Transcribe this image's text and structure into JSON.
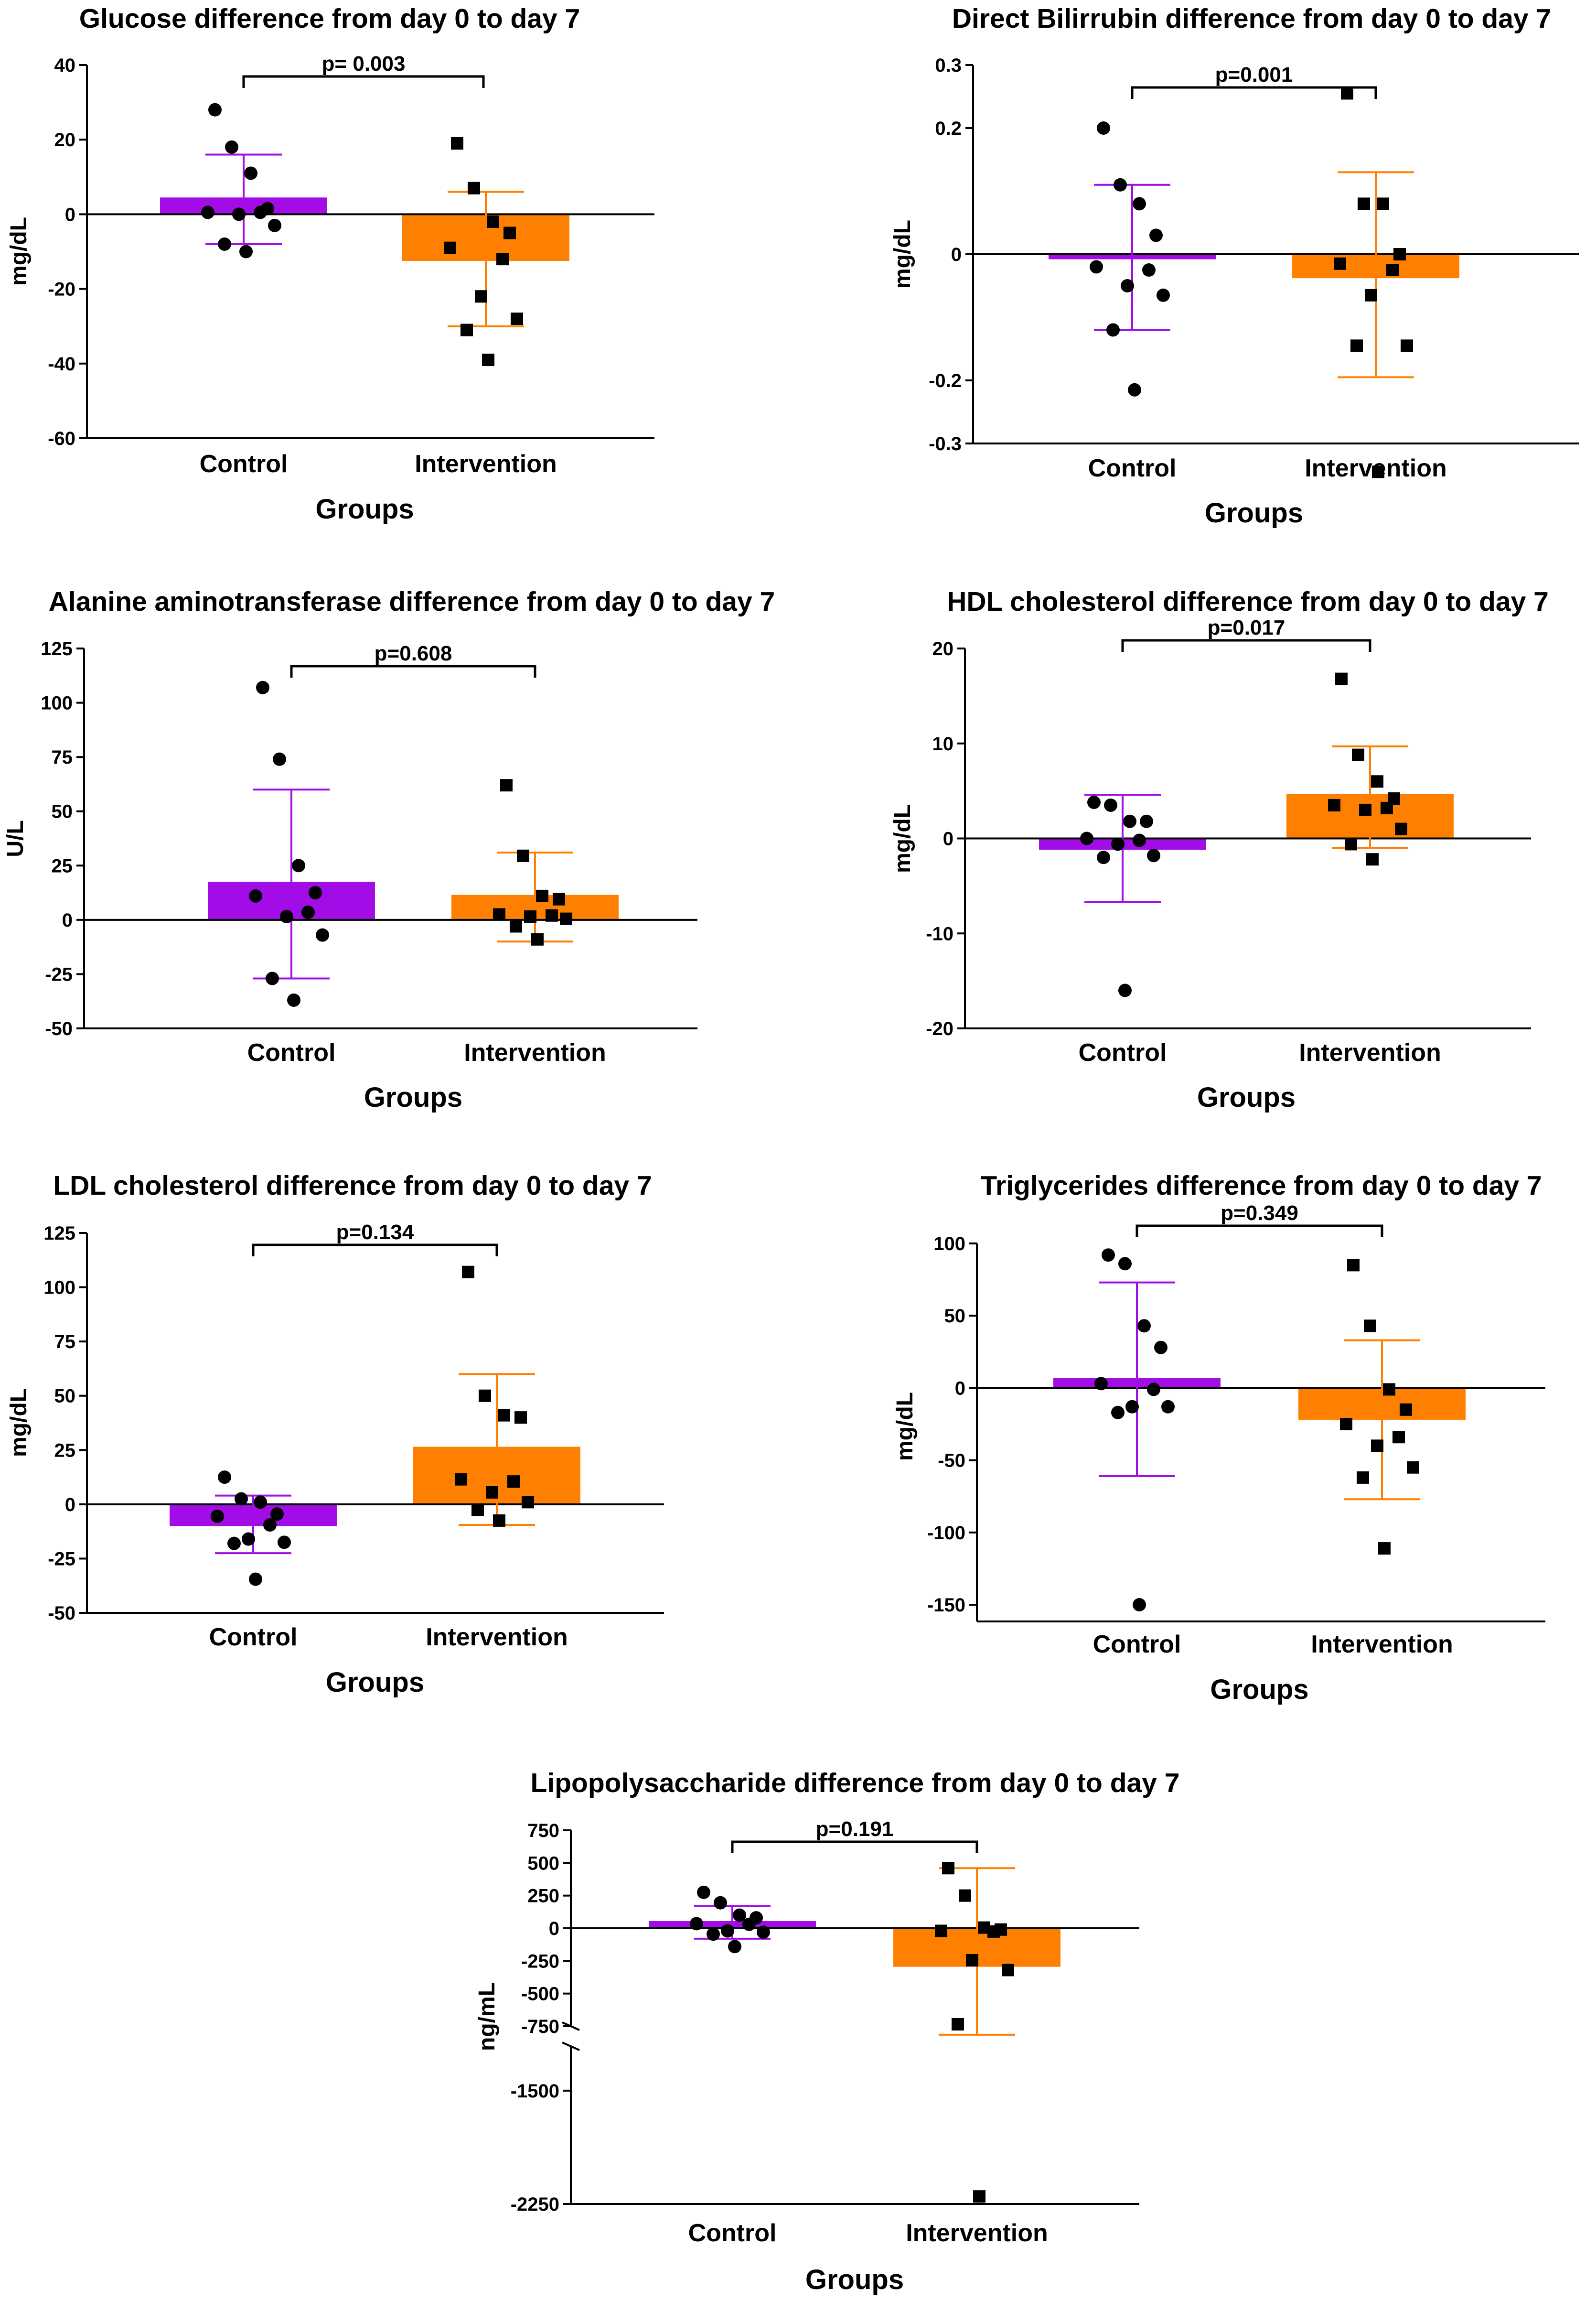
{
  "colors": {
    "control": "#a20de7",
    "intervention": "#ff8000",
    "ink": "#000000"
  },
  "chart_data": [
    {
      "type": "bar",
      "title": "Glucose difference from day 0 to day 7",
      "xlabel": "Groups",
      "ylabel": "mg/dL",
      "categories": [
        "Control",
        "Intervention"
      ],
      "ylim": [
        -60,
        40
      ],
      "yticks": [
        40,
        20,
        0,
        -20,
        -40,
        -60
      ],
      "ytick_labels": [
        "40",
        "20",
        "0",
        "-20",
        "-40",
        "-60"
      ],
      "means": [
        4.5,
        -12.5
      ],
      "error": [
        [
          -8,
          16
        ],
        [
          -30,
          6
        ]
      ],
      "points": [
        [
          28,
          18,
          11,
          1.5,
          0.5,
          0.5,
          0,
          -3,
          -8,
          -10
        ],
        [
          19,
          7,
          -2,
          -5,
          -9,
          -12,
          -22,
          -28,
          -31,
          -39
        ]
      ],
      "pvalue": "p= 0.003"
    },
    {
      "type": "bar",
      "title": "Direct Bilirrubin difference from day 0 to day 7",
      "xlabel": "Groups",
      "ylabel": "mg/dL",
      "categories": [
        "Control",
        "Intervention"
      ],
      "ylim": [
        -0.3,
        0.3
      ],
      "yticks": [
        0.3,
        0.2,
        0,
        -0.2,
        -0.3
      ],
      "ytick_labels": [
        "0.3",
        "0.2",
        "0",
        "-0.2",
        "-0.3"
      ],
      "means": [
        -0.008,
        -0.038
      ],
      "error": [
        [
          -0.12,
          0.11
        ],
        [
          -0.195,
          0.13
        ]
      ],
      "points": [
        [
          0.2,
          0.11,
          0.08,
          0.03,
          -0.02,
          -0.025,
          -0.05,
          -0.065,
          -0.12,
          -0.215
        ],
        [
          0.255,
          0.08,
          0.08,
          0.0,
          -0.015,
          -0.025,
          -0.065,
          -0.145,
          -0.145,
          -0.345
        ]
      ],
      "pvalue": "p=0.001"
    },
    {
      "type": "bar",
      "title": "Alanine aminotransferase difference from day 0 to day 7",
      "xlabel": "Groups",
      "ylabel": "U/L",
      "categories": [
        "Control",
        "Intervention"
      ],
      "ylim": [
        -50,
        125
      ],
      "yticks": [
        125,
        100,
        75,
        50,
        25,
        0,
        -25,
        -50
      ],
      "ytick_labels": [
        "125",
        "100",
        "75",
        "50",
        "25",
        "0",
        "-25",
        "-50"
      ],
      "means": [
        17.5,
        11.5
      ],
      "error": [
        [
          -27,
          60
        ],
        [
          -10,
          31
        ]
      ],
      "points": [
        [
          107,
          74,
          25,
          12.5,
          11,
          3.5,
          1.5,
          -7,
          -27,
          -37
        ],
        [
          62,
          29.5,
          11,
          9.5,
          2.5,
          2,
          1.5,
          0.5,
          -3,
          -9
        ]
      ],
      "pvalue": "p=0.608"
    },
    {
      "type": "bar",
      "title": "HDL cholesterol difference from day 0 to day 7",
      "xlabel": "Groups",
      "ylabel": "mg/dL",
      "categories": [
        "Control",
        "Intervention"
      ],
      "ylim": [
        -20,
        20
      ],
      "yticks": [
        20,
        10,
        0,
        -10,
        -20
      ],
      "ytick_labels": [
        "20",
        "10",
        "0",
        "-10",
        "-20"
      ],
      "means": [
        -1.2,
        4.7
      ],
      "error": [
        [
          -6.7,
          4.6
        ],
        [
          -1,
          9.7
        ]
      ],
      "points": [
        [
          3.8,
          3.5,
          1.8,
          1.8,
          0,
          -0.2,
          -0.6,
          -1.8,
          -2,
          -16
        ],
        [
          16.8,
          8.8,
          6,
          4.2,
          3.5,
          3.2,
          3,
          1,
          -0.6,
          -2.2
        ]
      ],
      "pvalue": "p=0.017"
    },
    {
      "type": "bar",
      "title": "LDL cholesterol difference from day 0 to day 7",
      "xlabel": "Groups",
      "ylabel": "mg/dL",
      "categories": [
        "Control",
        "Intervention"
      ],
      "ylim": [
        -50,
        125
      ],
      "yticks": [
        125,
        100,
        75,
        50,
        25,
        0,
        -25,
        -50
      ],
      "ytick_labels": [
        "125",
        "100",
        "75",
        "50",
        "25",
        "0",
        "-25",
        "-50"
      ],
      "means": [
        -10,
        26.5
      ],
      "error": [
        [
          -22.5,
          4
        ],
        [
          -9.5,
          60
        ]
      ],
      "points": [
        [
          12.5,
          2.5,
          1,
          -4.5,
          -5.5,
          -9.5,
          -16,
          -17.5,
          -18,
          -34.5
        ],
        [
          107,
          50,
          41,
          40,
          11.5,
          10.5,
          5.5,
          1,
          -2.5,
          -7.5
        ]
      ],
      "pvalue": "p=0.134"
    },
    {
      "type": "bar",
      "title": "Triglycerides difference from day 0 to day 7",
      "xlabel": "Groups",
      "ylabel": "mg/dL",
      "categories": [
        "Control",
        "Intervention"
      ],
      "ylim": [
        -160,
        100
      ],
      "yticks": [
        100,
        50,
        0,
        -50,
        -100,
        -150
      ],
      "ytick_labels": [
        "100",
        "50",
        "0",
        "-50",
        "-100",
        "-150"
      ],
      "means": [
        7,
        -22
      ],
      "error": [
        [
          -61,
          73
        ],
        [
          -77,
          33
        ]
      ],
      "points": [
        [
          92,
          86,
          43,
          28,
          3,
          -1,
          -13,
          -13,
          -17,
          -150
        ],
        [
          85,
          43,
          -1,
          -15,
          -25,
          -34,
          -40,
          -55,
          -62,
          -111
        ]
      ],
      "pvalue": "p=0.349"
    },
    {
      "type": "bar",
      "title": "Lipopolysaccharide difference from day 0 to day 7",
      "xlabel": "Groups",
      "ylabel": "ng/mL",
      "categories": [
        "Control",
        "Intervention"
      ],
      "ylim": [
        -2250,
        750
      ],
      "axis_break": [
        -1200,
        -750
      ],
      "yticks": [
        750,
        500,
        250,
        0,
        -250,
        -500,
        -750,
        -1500,
        -2250
      ],
      "ytick_labels": [
        "750",
        "500",
        "250",
        "0",
        "-250",
        "-500",
        "-750",
        "-1500",
        "-2250"
      ],
      "means": [
        55,
        -295
      ],
      "error": [
        [
          -80,
          170
        ],
        [
          -1130,
          460
        ]
      ],
      "points": [
        [
          275,
          195,
          100,
          80,
          35,
          30,
          -20,
          -30,
          -45,
          -140
        ],
        [
          460,
          250,
          5,
          -10,
          -20,
          -25,
          -245,
          -320,
          -735,
          -2200
        ]
      ],
      "pvalue": "p=0.191"
    }
  ]
}
